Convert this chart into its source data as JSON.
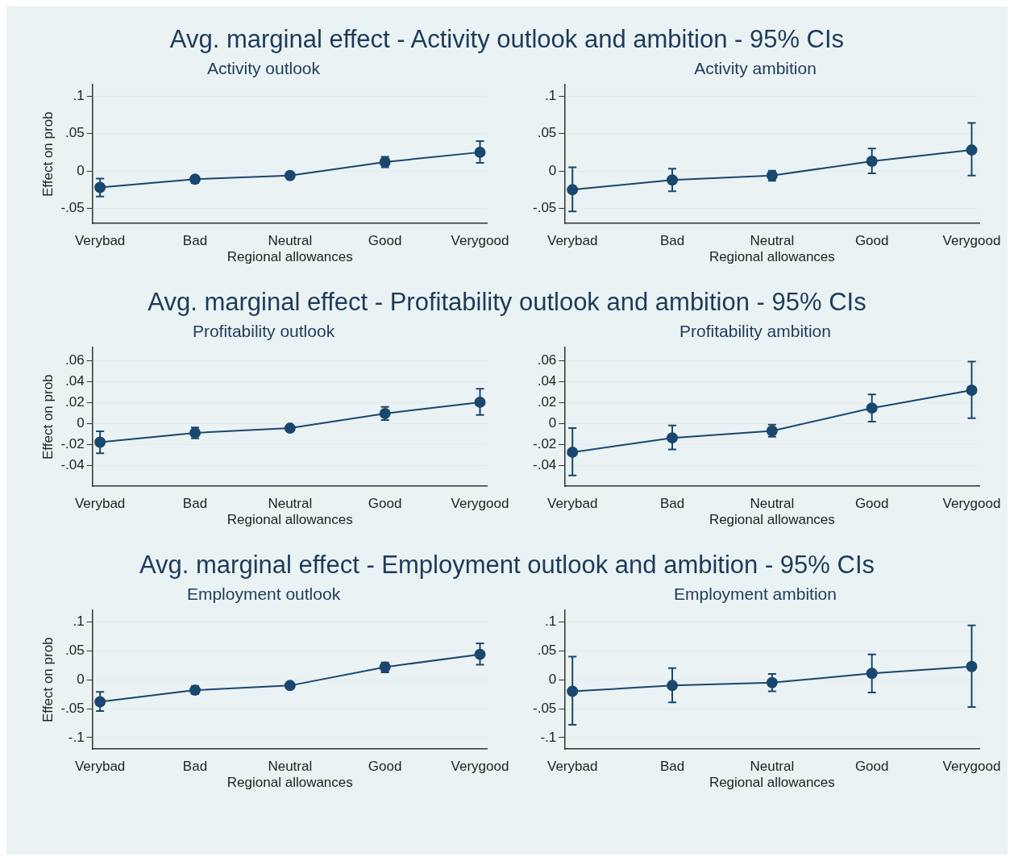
{
  "chart_data": [
    {
      "type": "line",
      "title": "Activity outlook",
      "annotations": [
        "Avg. marginal effect - Activity outlook and ambition - 95% CIs"
      ],
      "xlabel": "Regional allowances",
      "ylabel": "Effect on prob",
      "categories": [
        "Verybad",
        "Bad",
        "Neutral",
        "Good",
        "Verygood"
      ],
      "color": "#1a476f",
      "marker": "circle",
      "line_style": "solid",
      "grid": "y",
      "values": [
        -0.022,
        -0.011,
        -0.006,
        0.012,
        0.025
      ],
      "errors": [
        [
          -0.034,
          -0.01
        ],
        [
          -0.016,
          -0.007
        ],
        null,
        [
          0.005,
          0.019
        ],
        [
          0.011,
          0.04
        ]
      ],
      "ylim": [
        -0.07,
        0.115
      ],
      "yticks": [
        {
          "value": -0.05,
          "label": "-.05"
        },
        {
          "value": 0,
          "label": "0"
        },
        {
          "value": 0.05,
          "label": ".05"
        },
        {
          "value": 0.1,
          "label": ".1"
        }
      ]
    },
    {
      "type": "line",
      "title": "Activity ambition",
      "xlabel": "Regional allowances",
      "categories": [
        "Verybad",
        "Bad",
        "Neutral",
        "Good",
        "Verygood"
      ],
      "color": "#1a476f",
      "marker": "circle",
      "line_style": "solid",
      "grid": "y",
      "values": [
        -0.025,
        -0.012,
        -0.006,
        0.013,
        0.028
      ],
      "errors": [
        [
          -0.054,
          0.005
        ],
        [
          -0.027,
          0.003
        ],
        [
          -0.013,
          0.0005
        ],
        [
          -0.003,
          0.03
        ],
        [
          -0.006,
          0.064
        ]
      ],
      "ylim": [
        -0.07,
        0.115
      ],
      "yticks": [
        {
          "value": -0.05,
          "label": "-.05"
        },
        {
          "value": 0,
          "label": "0"
        },
        {
          "value": 0.05,
          "label": ".05"
        },
        {
          "value": 0.1,
          "label": ".1"
        }
      ]
    },
    {
      "type": "line",
      "title": "Profitability outlook",
      "annotations": [
        "Avg. marginal effect - Profitability outlook and ambition - 95% CIs"
      ],
      "xlabel": "Regional allowances",
      "ylabel": "Effect on prob",
      "categories": [
        "Verybad",
        "Bad",
        "Neutral",
        "Good",
        "Verygood"
      ],
      "color": "#1a476f",
      "marker": "circle",
      "line_style": "solid",
      "grid": "y",
      "values": [
        -0.0178,
        -0.0089,
        -0.0044,
        0.0096,
        0.0204
      ],
      "errors": [
        [
          -0.0285,
          -0.0074
        ],
        [
          -0.0141,
          -0.0037
        ],
        null,
        [
          0.0033,
          0.0159
        ],
        [
          0.0081,
          0.0333
        ]
      ],
      "ylim": [
        -0.06,
        0.0726
      ],
      "yticks": [
        {
          "value": -0.04,
          "label": "-.04"
        },
        {
          "value": -0.02,
          "label": "-.02"
        },
        {
          "value": 0,
          "label": "0"
        },
        {
          "value": 0.02,
          "label": ".02"
        },
        {
          "value": 0.04,
          "label": ".04"
        },
        {
          "value": 0.06,
          "label": ".06"
        }
      ]
    },
    {
      "type": "line",
      "title": "Profitability ambition",
      "xlabel": "Regional allowances",
      "categories": [
        "Verybad",
        "Bad",
        "Neutral",
        "Good",
        "Verygood"
      ],
      "color": "#1a476f",
      "marker": "circle",
      "line_style": "solid",
      "grid": "y",
      "values": [
        -0.0274,
        -0.0137,
        -0.007,
        0.0148,
        0.0319
      ],
      "errors": [
        [
          -0.0496,
          -0.0044
        ],
        [
          -0.0248,
          -0.0019
        ],
        [
          -0.0126,
          -0.0011
        ],
        [
          0.0019,
          0.0278
        ],
        [
          0.0052,
          0.0593
        ]
      ],
      "ylim": [
        -0.06,
        0.0726
      ],
      "yticks": [
        {
          "value": -0.04,
          "label": "-.04"
        },
        {
          "value": -0.02,
          "label": "-.02"
        },
        {
          "value": 0,
          "label": "0"
        },
        {
          "value": 0.02,
          "label": ".02"
        },
        {
          "value": 0.04,
          "label": ".04"
        },
        {
          "value": 0.06,
          "label": ".06"
        }
      ]
    },
    {
      "type": "line",
      "title": "Employment outlook",
      "annotations": [
        "Avg. marginal effect - Employment outlook and ambition - 95% CIs"
      ],
      "xlabel": "Regional allowances",
      "ylabel": "Effect on prob",
      "categories": [
        "Verybad",
        "Bad",
        "Neutral",
        "Good",
        "Verygood"
      ],
      "color": "#1a476f",
      "marker": "circle",
      "line_style": "solid",
      "grid": "y",
      "values": [
        -0.038,
        -0.018,
        -0.01,
        0.022,
        0.044
      ],
      "errors": [
        [
          -0.054,
          -0.021
        ],
        [
          -0.025,
          -0.011
        ],
        null,
        [
          0.013,
          0.03
        ],
        [
          0.026,
          0.063
        ]
      ],
      "ylim": [
        -0.12,
        0.12
      ],
      "yticks": [
        {
          "value": -0.1,
          "label": "-.1"
        },
        {
          "value": -0.05,
          "label": "-.05"
        },
        {
          "value": 0,
          "label": "0"
        },
        {
          "value": 0.05,
          "label": ".05"
        },
        {
          "value": 0.1,
          "label": ".1"
        }
      ]
    },
    {
      "type": "line",
      "title": "Employment ambition",
      "xlabel": "Regional allowances",
      "categories": [
        "Verybad",
        "Bad",
        "Neutral",
        "Good",
        "Verygood"
      ],
      "color": "#1a476f",
      "marker": "circle",
      "line_style": "solid",
      "grid": "y",
      "values": [
        -0.02,
        -0.01,
        -0.005,
        0.011,
        0.023
      ],
      "errors": [
        [
          -0.078,
          0.04
        ],
        [
          -0.039,
          0.02
        ],
        [
          -0.02,
          0.01
        ],
        [
          -0.022,
          0.044
        ],
        [
          -0.047,
          0.094
        ]
      ],
      "ylim": [
        -0.12,
        0.12
      ],
      "yticks": [
        {
          "value": -0.1,
          "label": "-.1"
        },
        {
          "value": -0.05,
          "label": "-.05"
        },
        {
          "value": 0,
          "label": "0"
        },
        {
          "value": 0.05,
          "label": ".05"
        },
        {
          "value": 0.1,
          "label": ".1"
        }
      ]
    }
  ]
}
